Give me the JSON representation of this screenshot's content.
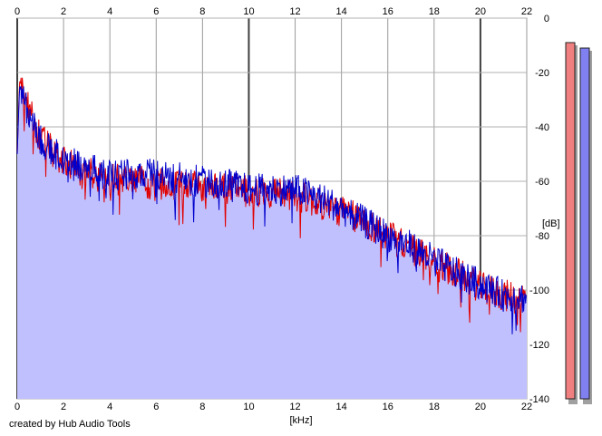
{
  "footer_text": "created by Hub Audio Tools",
  "chart_data": {
    "type": "line",
    "title": "",
    "xlabel": "[kHz]",
    "ylabel": "[dB]",
    "xlim": [
      0,
      22
    ],
    "ylim": [
      -140,
      0
    ],
    "x_ticks": [
      0,
      2,
      4,
      6,
      8,
      10,
      12,
      14,
      16,
      18,
      20,
      22
    ],
    "y_ticks": [
      0,
      -20,
      -40,
      -60,
      -80,
      -100,
      -120,
      -140
    ],
    "grid": true,
    "fill_under_series": true,
    "fill_color": "#c0c0ff",
    "series": [
      {
        "color": "#e00000",
        "x": [
          0,
          0.1,
          0.5,
          1.0,
          1.5,
          2.0,
          3.0,
          4.0,
          5.0,
          6.0,
          7.0,
          8.0,
          9.0,
          10.0,
          11.0,
          12.0,
          13.0,
          14.0,
          15.0,
          16.0,
          17.0,
          18.0,
          19.0,
          20.0,
          21.0,
          22.0
        ],
        "y": [
          -50,
          -23,
          -34,
          -44,
          -49,
          -53,
          -57,
          -59,
          -60,
          -61,
          -61,
          -62,
          -62,
          -64,
          -64,
          -65,
          -68,
          -71,
          -75,
          -80,
          -85,
          -89,
          -94,
          -99,
          -102,
          -103
        ]
      },
      {
        "color": "#0000cc",
        "x": [
          0,
          0.1,
          0.5,
          1.0,
          1.5,
          2.0,
          3.0,
          4.0,
          5.0,
          6.0,
          7.0,
          8.0,
          9.0,
          10.0,
          11.0,
          12.0,
          13.0,
          14.0,
          15.0,
          16.0,
          17.0,
          18.0,
          19.0,
          20.0,
          21.0,
          22.0
        ],
        "y": [
          -50,
          -25,
          -35,
          -45,
          -49,
          -52,
          -55,
          -58,
          -57,
          -58,
          -59,
          -60,
          -61,
          -63,
          -63,
          -63,
          -66,
          -70,
          -75,
          -80,
          -84,
          -89,
          -94,
          -98,
          -102,
          -103
        ]
      }
    ],
    "level_meters": [
      {
        "color": "#f08080",
        "level_db": -9
      },
      {
        "color": "#8080f0",
        "level_db": -11
      }
    ]
  }
}
